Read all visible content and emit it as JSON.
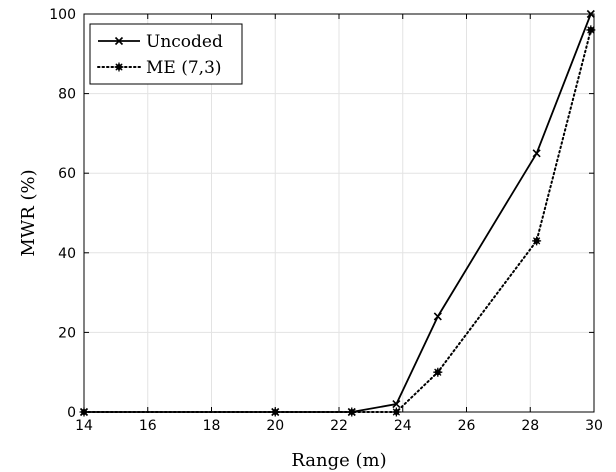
{
  "chart_data": {
    "type": "line",
    "xlabel": "Range (m)",
    "ylabel": "MWR (%)",
    "xlim": [
      14,
      30
    ],
    "ylim": [
      0,
      100
    ],
    "xticks": [
      14,
      16,
      18,
      20,
      22,
      24,
      26,
      28,
      30
    ],
    "yticks": [
      0,
      20,
      40,
      60,
      80,
      100
    ],
    "grid": true,
    "legend_position": "top-left",
    "series": [
      {
        "name": "Uncoded",
        "marker": "x",
        "line_style": "solid",
        "color": "#000000",
        "x": [
          14.0,
          20.0,
          22.4,
          23.8,
          25.1,
          28.2,
          29.9
        ],
        "y": [
          0,
          0,
          0,
          2,
          24,
          65,
          100
        ]
      },
      {
        "name": "ME (7,3)",
        "marker": "asterisk",
        "line_style": "dotted",
        "color": "#000000",
        "x": [
          14.0,
          20.0,
          22.4,
          23.8,
          25.1,
          28.2,
          29.9
        ],
        "y": [
          0,
          0,
          0,
          0,
          10,
          43,
          96
        ]
      }
    ]
  }
}
